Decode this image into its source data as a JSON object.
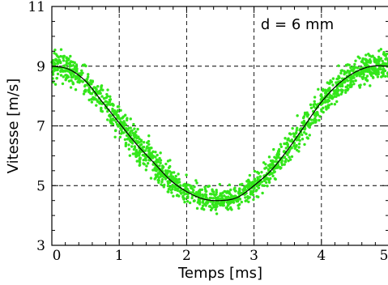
{
  "chart_data": {
    "type": "scatter",
    "title": "",
    "xlabel": "Temps [ms]",
    "ylabel": "Vitesse [m/s]",
    "annotation": "d = 6 mm",
    "xlim": [
      0,
      5
    ],
    "ylim": [
      3,
      11
    ],
    "xticks": [
      0,
      1,
      2,
      3,
      4,
      5
    ],
    "yticks": [
      3,
      5,
      7,
      9,
      11
    ],
    "xtick_labels": [
      "0",
      "1",
      "2",
      "3",
      "4",
      "5"
    ],
    "ytick_labels": [
      "3",
      "5",
      "7",
      "9",
      "11"
    ],
    "grid": true,
    "grid_style": "dashed",
    "series": [
      {
        "kind": "scatter",
        "color": "#33e61a",
        "x": [
          0.0,
          0.25,
          0.5,
          0.75,
          1.0,
          1.25,
          1.5,
          1.75,
          2.0,
          2.25,
          2.5,
          2.75,
          3.0,
          3.25,
          3.5,
          3.75,
          4.0,
          4.25,
          4.5,
          4.75,
          5.0
        ],
        "y": [
          9.0,
          8.9,
          8.5,
          7.8,
          7.1,
          6.4,
          5.8,
          5.2,
          4.8,
          4.55,
          4.5,
          4.6,
          5.0,
          5.5,
          6.2,
          7.0,
          7.8,
          8.4,
          8.8,
          9.0,
          9.0
        ],
        "spread": [
          0.45,
          0.45,
          0.45,
          0.45,
          0.45,
          0.45,
          0.45,
          0.45,
          0.4,
          0.35,
          0.35,
          0.35,
          0.4,
          0.45,
          0.45,
          0.45,
          0.45,
          0.45,
          0.45,
          0.45,
          0.45
        ]
      },
      {
        "kind": "line",
        "color": "#000000",
        "x": [
          0.0,
          0.25,
          0.5,
          0.75,
          1.0,
          1.25,
          1.5,
          1.75,
          2.0,
          2.25,
          2.5,
          2.75,
          3.0,
          3.25,
          3.5,
          3.75,
          4.0,
          4.25,
          4.5,
          4.75,
          5.0
        ],
        "y": [
          9.0,
          8.9,
          8.5,
          7.8,
          7.1,
          6.4,
          5.8,
          5.2,
          4.8,
          4.55,
          4.5,
          4.6,
          5.0,
          5.5,
          6.2,
          7.0,
          7.8,
          8.4,
          8.8,
          9.0,
          9.0
        ]
      }
    ]
  }
}
